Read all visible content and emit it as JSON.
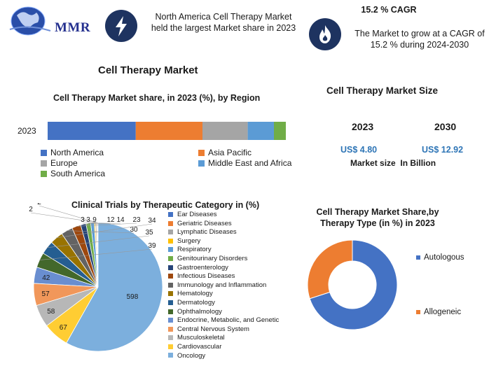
{
  "header": {
    "logo_text": "MMR",
    "north_america_text": "North America Cell Therapy Market held the largest Market share in 2023",
    "cagr_title": "15.2 % CAGR",
    "cagr_text": "The Market to grow at a CAGR of 15.2 % during 2024-2030",
    "icons": [
      "bolt-icon",
      "flame-icon",
      "globe-icon"
    ]
  },
  "main_title": "Cell Therapy Market",
  "market_size": {
    "title": "Cell Therapy Market Size",
    "years": [
      "2023",
      "2030"
    ],
    "values": [
      "US$ 4.80",
      "US$ 12.92"
    ],
    "caption": "Market size  In Billion"
  },
  "colors": {
    "north_america": "#4472c4",
    "asia_pacific": "#ed7d31",
    "europe": "#a5a5a5",
    "middle_east": "#5b9bd5",
    "south_america": "#70ad47",
    "navy": "#1e3360",
    "value_blue": "#2e75b6"
  },
  "chart_data": [
    {
      "type": "bar",
      "orientation": "horizontal-stacked",
      "title": "Cell Therapy Market share, in 2023 (%), by Region",
      "categories": [
        "2023"
      ],
      "series": [
        {
          "name": "North America",
          "values": [
            37
          ],
          "color": "#4472c4"
        },
        {
          "name": "Asia Pacific",
          "values": [
            28
          ],
          "color": "#ed7d31"
        },
        {
          "name": "Europe",
          "values": [
            19
          ],
          "color": "#a5a5a5"
        },
        {
          "name": "Middle East and Africa",
          "values": [
            11
          ],
          "color": "#5b9bd5"
        },
        {
          "name": "South America",
          "values": [
            5
          ],
          "color": "#70ad47"
        }
      ],
      "legend": "bottom"
    },
    {
      "type": "pie",
      "title": "Clinical Trials by Therapeutic Category in (%)",
      "labels": [
        "Ear Diseases",
        "Geriatric Diseases",
        "Lymphatic Diseases",
        "Surgery",
        "Respiratory",
        "Genitourinary Disorders",
        "Gastroenterology",
        "Infectious Diseases",
        "Immunology and Inflammation",
        "Hematology",
        "Dermatology",
        "Ophthalmology",
        "Endocrine, Metabolic, and Genetic",
        "Central Nervous System",
        "Musculoskeletal",
        "Cardiovascular",
        "Oncology"
      ],
      "values": [
        2,
        2,
        3,
        3,
        9,
        12,
        14,
        23,
        30,
        34,
        35,
        39,
        42,
        57,
        58,
        67,
        598
      ],
      "colors": [
        "#4472c4",
        "#ed7d31",
        "#a5a5a5",
        "#ffc000",
        "#5b9bd5",
        "#70ad47",
        "#264478",
        "#9e480e",
        "#636363",
        "#997300",
        "#255e91",
        "#43682b",
        "#698ed0",
        "#f1975a",
        "#b7b7b7",
        "#ffcd33",
        "#7cafdd"
      ],
      "legend": "right"
    },
    {
      "type": "pie",
      "subtype": "donut",
      "title": "Cell Therapy Market Share,by Therapy Type (in %) in 2023",
      "labels": [
        "Autologous",
        "Allogeneic"
      ],
      "values": [
        70,
        30
      ],
      "colors": [
        "#4472c4",
        "#ed7d31"
      ],
      "legend": "right"
    }
  ]
}
